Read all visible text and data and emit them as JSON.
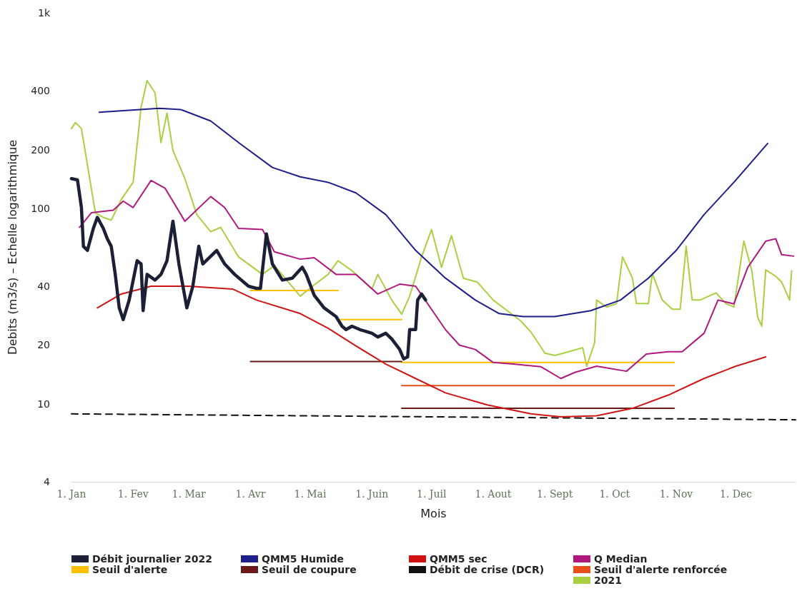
{
  "chart_data": {
    "type": "line",
    "xlabel": "Mois",
    "ylabel": "Debits (m3/s) – Echelle logarithmique",
    "log": "y",
    "grid": false,
    "legend": "bottom",
    "marker": "none",
    "xlim": [
      "--01-01",
      "--12-31"
    ],
    "xticks": [
      {
        "value": "--01-01",
        "label": "1. Jan"
      },
      {
        "value": "--02-01",
        "label": "1. Fev"
      },
      {
        "value": "--03-01",
        "label": "1. Mar"
      },
      {
        "value": "--04-01",
        "label": "1. Avr"
      },
      {
        "value": "--05-01",
        "label": "1. Mai"
      },
      {
        "value": "--06-01",
        "label": "1. Juin"
      },
      {
        "value": "--07-01",
        "label": "1. Juil"
      },
      {
        "value": "--08-01",
        "label": "1. Aout"
      },
      {
        "value": "--09-01",
        "label": "1. Sept"
      },
      {
        "value": "--10-01",
        "label": "1. Oct"
      },
      {
        "value": "--11-01",
        "label": "1. Nov"
      },
      {
        "value": "--12-01",
        "label": "1. Dec"
      }
    ],
    "ylim": [
      4,
      1000
    ],
    "yticks": [
      4,
      10,
      20,
      40,
      100,
      200,
      400,
      {
        "value": 1000,
        "label": "1k"
      }
    ],
    "series": [
      {
        "name": "Débit journalier 2022",
        "color": "#1b2036",
        "x": [
          "--01-01",
          "--01-04",
          "--01-06",
          "--01-07",
          "--01-09",
          "--01-12",
          "--01-14",
          "--01-17",
          "--01-19",
          "--01-21",
          "--01-23",
          "--01-25",
          "--01-27",
          "--01-30",
          "--02-03",
          "--02-05",
          "--02-06",
          "--02-08",
          "--02-12",
          "--02-15",
          "--02-18",
          "--02-21",
          "--02-24",
          "--02-28",
          "--03-03",
          "--03-06",
          "--03-08",
          "--03-15",
          "--03-19",
          "--03-24",
          "--03-31",
          "--04-04",
          "--04-06",
          "--04-09",
          "--04-12",
          "--04-17",
          "--04-22",
          "--04-27",
          "--04-29",
          "--05-03",
          "--05-08",
          "--05-14",
          "--05-17",
          "--05-19",
          "--05-22",
          "--05-26",
          "--06-01",
          "--06-04",
          "--06-08",
          "--06-11",
          "--06-15",
          "--06-17",
          "--06-19",
          "--06-20",
          "--06-23",
          "--06-24",
          "--06-26",
          "--06-28"
        ],
        "values": [
          142,
          140,
          101,
          64,
          61,
          79,
          90,
          79,
          70,
          64,
          46,
          31,
          27,
          34,
          54,
          52,
          30,
          46,
          43,
          46,
          54,
          86,
          52,
          31,
          40,
          64,
          52,
          61,
          52,
          46,
          40,
          39,
          39,
          74,
          52,
          43,
          44,
          50,
          46,
          36,
          31,
          28,
          25,
          24,
          25,
          24,
          23,
          22,
          23,
          21.5,
          19,
          17,
          17.4,
          24,
          24,
          34,
          36.5,
          34
        ]
      },
      {
        "name": "QMM5 Humide",
        "color": "#1f1f8c",
        "x": [
          "--01-15",
          "--02-14",
          "--02-25",
          "--03-12",
          "--03-26",
          "--04-12",
          "--04-26",
          "--05-10",
          "--05-24",
          "--06-08",
          "--06-23",
          "--07-08",
          "--07-23",
          "--08-04",
          "--08-16",
          "--09-01",
          "--09-19",
          "--10-04",
          "--10-18",
          "--11-01",
          "--11-15",
          "--11-30",
          "--12-17"
        ],
        "values": [
          310,
          325,
          320,
          280,
          217,
          162,
          145,
          136,
          120,
          93,
          61,
          44,
          34,
          29,
          28,
          28,
          30,
          34,
          44,
          61,
          93,
          136,
          215
        ]
      },
      {
        "name": "QMM5 sec",
        "color": "#d01414",
        "x": [
          "--01-14",
          "--01-26",
          "--02-10",
          "--03-01",
          "--03-23",
          "--04-04",
          "--04-26",
          "--05-10",
          "--05-24",
          "--06-08",
          "--06-23",
          "--07-08",
          "--07-29",
          "--08-20",
          "--09-04",
          "--09-22",
          "--10-10",
          "--10-28",
          "--11-15",
          "--12-01",
          "--12-16"
        ],
        "values": [
          31,
          36.5,
          40,
          40,
          38.7,
          34,
          29,
          24.4,
          19.8,
          16,
          13.5,
          11.4,
          9.9,
          8.9,
          8.6,
          8.7,
          9.5,
          11.1,
          13.5,
          15.6,
          17.4
        ]
      },
      {
        "name": "Q Median",
        "color": "#b0187f",
        "x": [
          "--01-05",
          "--01-11",
          "--01-22",
          "--01-27",
          "--02-01",
          "--02-10",
          "--02-17",
          "--02-27",
          "--03-12",
          "--03-19",
          "--03-26",
          "--04-07",
          "--04-13",
          "--04-26",
          "--05-03",
          "--05-14",
          "--05-24",
          "--06-04",
          "--06-15",
          "--06-23",
          "--07-08",
          "--07-15",
          "--07-23",
          "--08-01",
          "--08-11",
          "--08-25",
          "--09-04",
          "--09-11",
          "--09-22",
          "--10-07",
          "--10-17",
          "--10-28",
          "--11-04",
          "--11-15",
          "--11-22",
          "--11-30",
          "--12-07",
          "--12-16",
          "--12-21",
          "--12-24",
          "--12-30"
        ],
        "values": [
          80,
          95,
          98,
          109,
          101,
          139,
          127,
          86,
          115,
          101,
          79,
          78,
          60,
          55,
          56,
          46,
          46,
          36.5,
          41,
          40,
          24,
          20,
          19,
          16.3,
          16,
          15.5,
          13.5,
          14.5,
          15.6,
          14.7,
          18,
          18.5,
          18.5,
          23,
          34,
          32.5,
          50,
          68,
          70,
          58,
          57
        ]
      },
      {
        "name": "Seuil d'alerte",
        "color": "#ffc000",
        "x": [
          "--04-01",
          "--05-15"
        ],
        "values": [
          38,
          38
        ]
      },
      {
        "name": "Seuil de coupure",
        "color": "#6b1a1a",
        "x": [
          "--04-01",
          "--06-16"
        ],
        "values": [
          16.5,
          16.5
        ]
      },
      {
        "name": "Débit de crise (DCR)",
        "color": "#111111",
        "line_style": "dashed",
        "x": [
          "--01-01",
          "--12-31"
        ],
        "values": [
          8.9,
          8.3
        ]
      },
      {
        "name": "Seuil d'alerte renforcée",
        "color": "#e8501a",
        "x": [
          "--06-16",
          "--10-31"
        ],
        "values": [
          12.4,
          12.4
        ]
      },
      {
        "color": "#ffc000",
        "x": [
          "--05-16",
          "--06-16"
        ],
        "values": [
          27,
          27
        ]
      },
      {
        "color": "#ffc000",
        "x": [
          "--06-16",
          "--10-31"
        ],
        "values": [
          16.3,
          16.3
        ]
      },
      {
        "color": "#6b1a1a",
        "x": [
          "--06-16",
          "--10-31"
        ],
        "values": [
          9.5,
          9.5
        ]
      },
      {
        "name": "2021",
        "color": "#a8d040",
        "x": [
          "--01-01",
          "--01-03",
          "--01-06",
          "--01-13",
          "--01-17",
          "--01-21",
          "--01-26",
          "--02-01",
          "--02-05",
          "--02-08",
          "--02-12",
          "--02-15",
          "--02-18",
          "--02-21",
          "--02-27",
          "--03-05",
          "--03-12",
          "--03-17",
          "--03-26",
          "--04-07",
          "--04-13",
          "--04-26",
          "--05-03",
          "--05-10",
          "--05-15",
          "--05-22",
          "--06-01",
          "--06-04",
          "--06-11",
          "--06-16",
          "--06-20",
          "--06-26",
          "--07-01",
          "--07-06",
          "--07-11",
          "--07-17",
          "--07-24",
          "--08-01",
          "--08-08",
          "--08-15",
          "--08-20",
          "--08-27",
          "--09-01",
          "--09-08",
          "--09-15",
          "--09-17",
          "--09-21",
          "--09-22",
          "--09-27",
          "--10-02",
          "--10-05",
          "--10-10",
          "--10-12",
          "--10-18",
          "--10-20",
          "--10-25",
          "--10-30",
          "--11-03",
          "--11-06",
          "--11-09",
          "--11-13",
          "--11-21",
          "--11-26",
          "--11-30",
          "--12-05",
          "--12-09",
          "--12-12",
          "--12-14",
          "--12-16",
          "--12-21",
          "--12-24",
          "--12-28",
          "--12-29"
        ],
        "values": [
          256,
          275,
          256,
          95,
          90,
          87,
          111,
          136,
          330,
          450,
          390,
          217,
          307,
          198,
          142,
          93,
          76,
          80,
          56.5,
          46,
          51,
          35.6,
          40.6,
          46,
          54,
          48,
          38.7,
          46,
          34,
          28.8,
          35.6,
          56.5,
          78,
          50,
          72.6,
          44,
          42,
          34,
          30,
          26.5,
          23.3,
          18.2,
          17.7,
          18.5,
          19.4,
          15.6,
          20.6,
          34,
          31.3,
          32.6,
          56.5,
          44,
          32.6,
          32.6,
          46.5,
          34,
          30.5,
          30.5,
          64,
          34,
          34,
          37,
          32.6,
          31.3,
          68,
          48,
          27.7,
          25,
          48.5,
          45,
          42,
          34,
          48
        ]
      }
    ]
  }
}
